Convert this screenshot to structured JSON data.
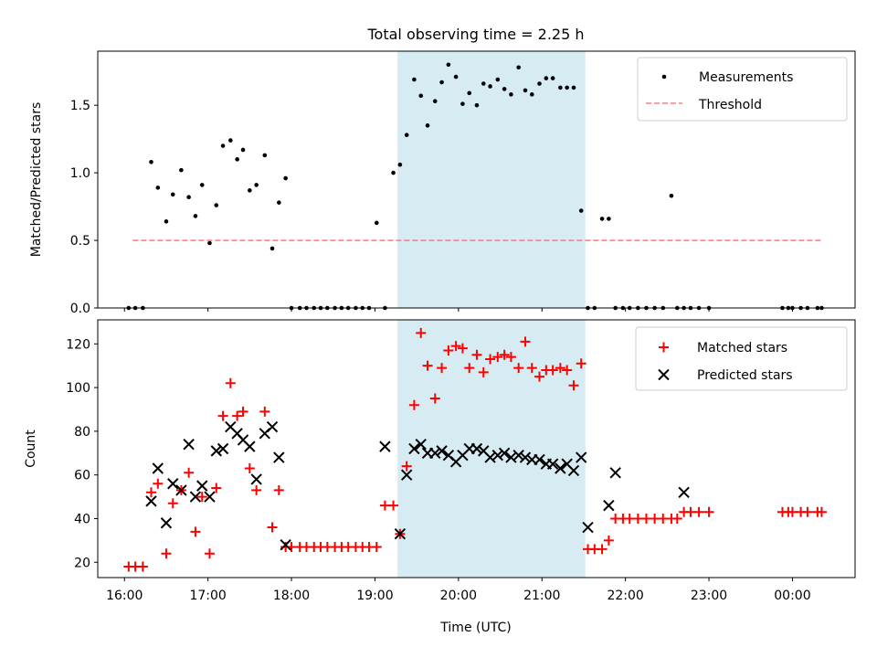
{
  "chart_data": {
    "type": "scatter",
    "title": "Total observing time = 2.25 h",
    "xlabel": "Time (UTC)",
    "x_ticks": [
      "16:00",
      "17:00",
      "18:00",
      "19:00",
      "20:00",
      "21:00",
      "22:00",
      "23:00",
      "00:00"
    ],
    "xlim_hours": [
      15.68,
      24.75
    ],
    "highlight_band_hours": [
      19.27,
      21.52
    ],
    "highlight_color": "#add8e6",
    "panels": [
      {
        "ylabel": "Matched/Predicted stars",
        "ylim": [
          0,
          1.9
        ],
        "y_ticks": [
          0.0,
          0.5,
          1.0,
          1.5
        ],
        "y_tick_labels": [
          "0.0",
          "0.5",
          "1.0",
          "1.5"
        ],
        "legend_position": "top-right",
        "series": [
          {
            "name": "Measurements",
            "marker": "dot",
            "color": "#000000",
            "x": [
              16.05,
              16.13,
              16.22,
              16.32,
              16.4,
              16.5,
              16.58,
              16.68,
              16.77,
              16.85,
              16.93,
              17.02,
              17.1,
              17.18,
              17.27,
              17.35,
              17.42,
              17.5,
              17.58,
              17.68,
              17.77,
              17.85,
              17.93,
              18.0,
              18.1,
              18.18,
              18.27,
              18.35,
              18.43,
              18.52,
              18.6,
              18.68,
              18.77,
              18.85,
              18.93,
              19.02,
              19.12,
              19.22,
              19.3,
              19.38,
              19.47,
              19.55,
              19.63,
              19.72,
              19.8,
              19.88,
              19.97,
              20.05,
              20.13,
              20.22,
              20.3,
              20.38,
              20.47,
              20.55,
              20.63,
              20.72,
              20.8,
              20.88,
              20.97,
              21.05,
              21.13,
              21.22,
              21.3,
              21.38,
              21.47,
              21.55,
              21.63,
              21.72,
              21.8,
              21.88,
              21.97,
              22.05,
              22.15,
              22.25,
              22.35,
              22.45,
              22.55,
              22.62,
              22.7,
              22.78,
              22.88,
              23.0,
              23.88,
              23.95,
              24.0,
              24.1,
              24.18,
              24.3,
              24.35
            ],
            "y": [
              0,
              0,
              0,
              1.08,
              0.89,
              0.64,
              0.84,
              1.02,
              0.82,
              0.68,
              0.91,
              0.48,
              0.76,
              1.2,
              1.24,
              1.1,
              1.17,
              0.87,
              0.91,
              1.13,
              0.44,
              0.78,
              0.96,
              0,
              0,
              0,
              0,
              0,
              0,
              0,
              0,
              0,
              0,
              0,
              0,
              0.63,
              0,
              1.0,
              1.06,
              1.28,
              1.69,
              1.57,
              1.35,
              1.53,
              1.67,
              1.8,
              1.71,
              1.51,
              1.59,
              1.5,
              1.66,
              1.64,
              1.69,
              1.62,
              1.58,
              1.78,
              1.61,
              1.58,
              1.66,
              1.7,
              1.7,
              1.63,
              1.63,
              1.63,
              0.72,
              0,
              0,
              0.66,
              0.66,
              0,
              0,
              0,
              0,
              0,
              0,
              0,
              0.83,
              0,
              0,
              0,
              0,
              0,
              0,
              0,
              0,
              0,
              0,
              0,
              0
            ]
          },
          {
            "name": "Threshold",
            "marker": "dashed-line",
            "color": "#ff7f7f",
            "x": [
              16.1,
              24.35
            ],
            "y": [
              0.5,
              0.5
            ]
          }
        ]
      },
      {
        "ylabel": "Count",
        "ylim": [
          13,
          131
        ],
        "y_ticks": [
          20,
          40,
          60,
          80,
          100,
          120
        ],
        "y_tick_labels": [
          "20",
          "40",
          "60",
          "80",
          "100",
          "120"
        ],
        "legend_position": "top-right",
        "series": [
          {
            "name": "Matched stars",
            "marker": "plus",
            "color": "#ff0000",
            "x": [
              16.05,
              16.13,
              16.22,
              16.32,
              16.4,
              16.5,
              16.58,
              16.68,
              16.77,
              16.85,
              16.93,
              17.02,
              17.1,
              17.18,
              17.27,
              17.35,
              17.42,
              17.5,
              17.58,
              17.68,
              17.77,
              17.85,
              17.93,
              18.0,
              18.1,
              18.18,
              18.27,
              18.35,
              18.43,
              18.52,
              18.6,
              18.68,
              18.77,
              18.85,
              18.93,
              19.02,
              19.12,
              19.22,
              19.3,
              19.38,
              19.47,
              19.55,
              19.63,
              19.72,
              19.8,
              19.88,
              19.97,
              20.05,
              20.13,
              20.22,
              20.3,
              20.38,
              20.47,
              20.55,
              20.63,
              20.72,
              20.8,
              20.88,
              20.97,
              21.05,
              21.13,
              21.22,
              21.3,
              21.38,
              21.47,
              21.55,
              21.63,
              21.72,
              21.8,
              21.88,
              21.97,
              22.05,
              22.15,
              22.25,
              22.35,
              22.45,
              22.55,
              22.62,
              22.7,
              22.78,
              22.88,
              23.0,
              23.88,
              23.95,
              24.0,
              24.1,
              24.18,
              24.3,
              24.35
            ],
            "y": [
              18,
              18,
              18,
              52,
              56,
              24,
              47,
              53,
              61,
              34,
              50,
              24,
              54,
              87,
              102,
              87,
              89,
              63,
              53,
              89,
              36,
              53,
              27,
              27,
              27,
              27,
              27,
              27,
              27,
              27,
              27,
              27,
              27,
              27,
              27,
              27,
              46,
              46,
              33,
              64,
              92,
              125,
              110,
              95,
              109,
              117,
              119,
              118,
              109,
              115,
              107,
              113,
              114,
              115,
              114,
              109,
              121,
              109,
              105,
              108,
              108,
              109,
              108,
              101,
              111,
              26,
              26,
              26,
              30,
              40,
              40,
              40,
              40,
              40,
              40,
              40,
              40,
              40,
              43,
              43,
              43,
              43,
              43,
              43,
              43,
              43,
              43,
              43,
              43
            ]
          },
          {
            "name": "Predicted stars",
            "marker": "x",
            "color": "#000000",
            "x": [
              16.32,
              16.4,
              16.5,
              16.58,
              16.68,
              16.77,
              16.85,
              16.93,
              17.02,
              17.1,
              17.18,
              17.27,
              17.35,
              17.42,
              17.5,
              17.58,
              17.68,
              17.77,
              17.85,
              17.93,
              19.12,
              19.3,
              19.38,
              19.47,
              19.55,
              19.63,
              19.72,
              19.8,
              19.88,
              19.97,
              20.05,
              20.13,
              20.22,
              20.3,
              20.38,
              20.47,
              20.55,
              20.63,
              20.72,
              20.8,
              20.88,
              20.97,
              21.05,
              21.13,
              21.22,
              21.3,
              21.38,
              21.47,
              21.55,
              21.8,
              21.88,
              22.7
            ],
            "y": [
              48,
              63,
              38,
              56,
              53,
              74,
              50,
              55,
              50,
              71,
              72,
              82,
              79,
              76,
              73,
              58,
              79,
              82,
              68,
              28,
              73,
              33,
              60,
              72,
              74,
              70,
              70,
              71,
              69,
              66,
              69,
              72,
              72,
              71,
              68,
              69,
              70,
              68,
              69,
              68,
              67,
              67,
              65,
              65,
              63,
              65,
              62,
              68,
              36,
              46,
              61,
              52
            ]
          }
        ]
      }
    ]
  }
}
